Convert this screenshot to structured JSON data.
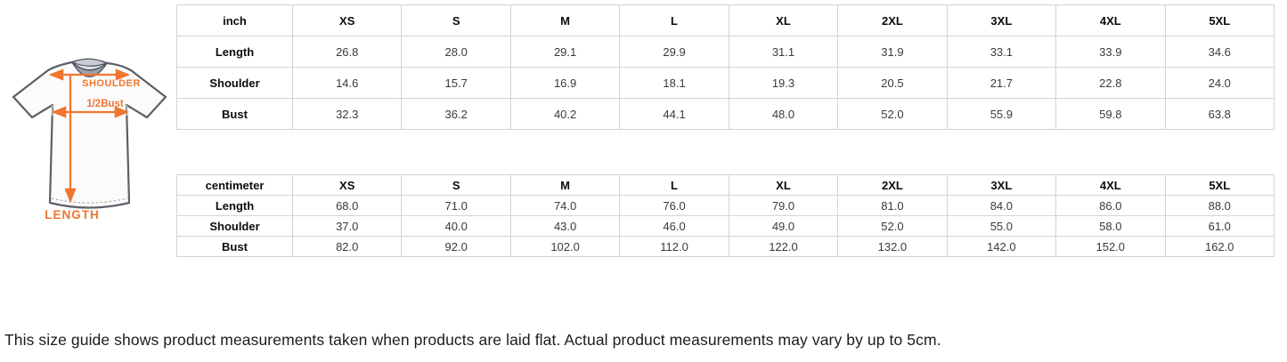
{
  "diagram": {
    "shoulder_label": "SHOULDER",
    "bust_label": "1/2Bust",
    "length_label": "LENGTH",
    "accent_color": "#F0762E"
  },
  "inch_table": {
    "unit_header": "inch",
    "size_headers": [
      "XS",
      "S",
      "M",
      "L",
      "XL",
      "2XL",
      "3XL",
      "4XL",
      "5XL"
    ],
    "rows": [
      {
        "label": "Length",
        "values": [
          "26.8",
          "28.0",
          "29.1",
          "29.9",
          "31.1",
          "31.9",
          "33.1",
          "33.9",
          "34.6"
        ]
      },
      {
        "label": "Shoulder",
        "values": [
          "14.6",
          "15.7",
          "16.9",
          "18.1",
          "19.3",
          "20.5",
          "21.7",
          "22.8",
          "24.0"
        ]
      },
      {
        "label": "Bust",
        "values": [
          "32.3",
          "36.2",
          "40.2",
          "44.1",
          "48.0",
          "52.0",
          "55.9",
          "59.8",
          "63.8"
        ]
      }
    ]
  },
  "cm_table": {
    "unit_header": "centimeter",
    "size_headers": [
      "XS",
      "S",
      "M",
      "L",
      "XL",
      "2XL",
      "3XL",
      "4XL",
      "5XL"
    ],
    "rows": [
      {
        "label": "Length",
        "values": [
          "68.0",
          "71.0",
          "74.0",
          "76.0",
          "79.0",
          "81.0",
          "84.0",
          "86.0",
          "88.0"
        ]
      },
      {
        "label": "Shoulder",
        "values": [
          "37.0",
          "40.0",
          "43.0",
          "46.0",
          "49.0",
          "52.0",
          "55.0",
          "58.0",
          "61.0"
        ]
      },
      {
        "label": "Bust",
        "values": [
          "82.0",
          "92.0",
          "102.0",
          "112.0",
          "122.0",
          "132.0",
          "142.0",
          "152.0",
          "162.0"
        ]
      }
    ]
  },
  "footer": {
    "note": "This size guide shows product measurements taken when products are laid flat. Actual product measurements may vary by up to 5cm."
  }
}
